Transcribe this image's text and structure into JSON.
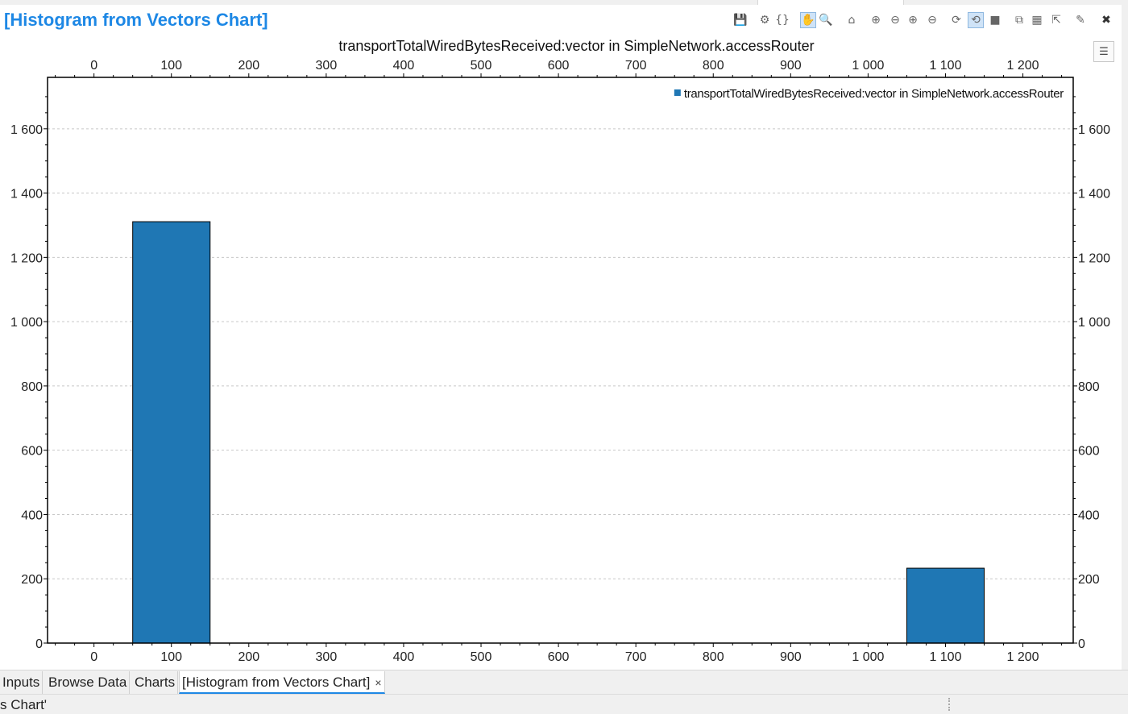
{
  "editor": {
    "title": "[Histogram from Vectors Chart]"
  },
  "toolbar": {
    "buttons": [
      {
        "name": "save-icon",
        "glyph": "💾"
      },
      {
        "name": "gear-icon",
        "glyph": "⚙"
      },
      {
        "name": "braces-icon",
        "glyph": "{}"
      },
      {
        "name": "hand-pan-icon",
        "glyph": "✋",
        "active": true
      },
      {
        "name": "magnifier-icon",
        "glyph": "🔍"
      },
      {
        "name": "home-icon",
        "glyph": "⌂"
      },
      {
        "name": "zoom-in-horizontal-icon",
        "glyph": "⊕"
      },
      {
        "name": "zoom-out-horizontal-icon",
        "glyph": "⊖"
      },
      {
        "name": "zoom-in-vertical-icon",
        "glyph": "⊕"
      },
      {
        "name": "zoom-out-vertical-icon",
        "glyph": "⊖"
      },
      {
        "name": "refresh-icon",
        "glyph": "⟳"
      },
      {
        "name": "auto-refresh-icon",
        "glyph": "⟲",
        "active": true
      },
      {
        "name": "stop-icon",
        "glyph": "■"
      },
      {
        "name": "copy-icon",
        "glyph": "⧉"
      },
      {
        "name": "export-chart-icon",
        "glyph": "▦"
      },
      {
        "name": "export-data-icon",
        "glyph": "⇱"
      },
      {
        "name": "new-chart-icon",
        "glyph": "✎"
      },
      {
        "name": "close-icon",
        "glyph": "✖"
      }
    ]
  },
  "colors": {
    "title": "#1e88e5",
    "bar": "#1f77b4",
    "grid": "#c8c8c8"
  },
  "chart_data": {
    "type": "bar",
    "title": "transportTotalWiredBytesReceived:vector in SimpleNetwork.accessRouter",
    "xlabel": "",
    "ylabel": "",
    "xlim": [
      -60,
      1265
    ],
    "ylim": [
      0,
      1760
    ],
    "xticks": [
      0,
      100,
      200,
      300,
      400,
      500,
      600,
      700,
      800,
      900,
      1000,
      1100,
      1200
    ],
    "xtick_labels": [
      "0",
      "100",
      "200",
      "300",
      "400",
      "500",
      "600",
      "700",
      "800",
      "900",
      "1 000",
      "1 100",
      "1 200"
    ],
    "yticks": [
      0,
      200,
      400,
      600,
      800,
      1000,
      1200,
      1400,
      1600
    ],
    "ytick_labels": [
      "0",
      "200",
      "400",
      "600",
      "800",
      "1 000",
      "1 200",
      "1 400",
      "1 600"
    ],
    "grid": true,
    "legend_position": "top-right",
    "series": [
      {
        "name": "transportTotalWiredBytesReceived:vector in SimpleNetwork.accessRouter",
        "color": "#1f77b4",
        "bins": [
          {
            "from": 50,
            "to": 150,
            "count": 1311
          },
          {
            "from": 1050,
            "to": 1150,
            "count": 233
          }
        ]
      }
    ]
  },
  "bottom_tabs": [
    {
      "label": "Inputs",
      "active": false
    },
    {
      "label": "Browse Data",
      "active": false
    },
    {
      "label": "Charts",
      "active": false
    },
    {
      "label": "[Histogram from Vectors Chart]",
      "active": true,
      "closable": true
    }
  ],
  "tab_close_glyph": "×",
  "status": {
    "text": "s Chart'"
  }
}
